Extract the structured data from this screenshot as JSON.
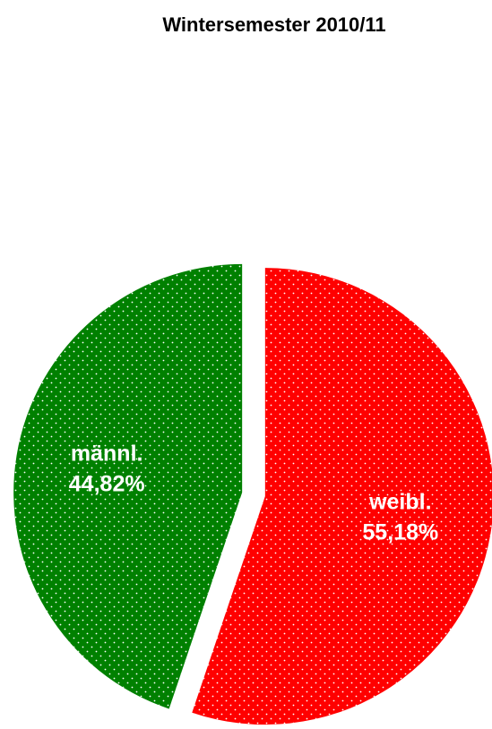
{
  "chart_data": {
    "type": "pie",
    "title": "Wintersemester 2010/11",
    "categories": [
      "weibl.",
      "männl."
    ],
    "values": [
      55.18,
      44.82
    ],
    "value_labels": [
      "55,18%",
      "44,82%"
    ],
    "colors": [
      "#ff0000",
      "#008000"
    ],
    "pattern": "dotted"
  }
}
